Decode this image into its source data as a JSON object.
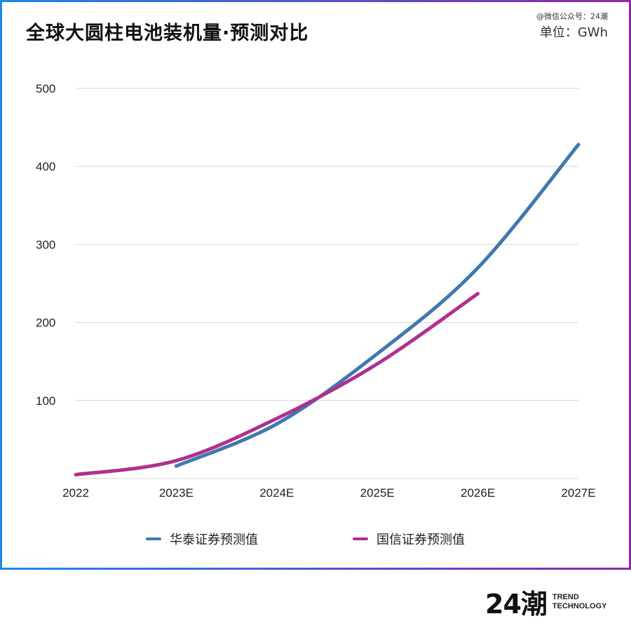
{
  "header": {
    "title": "全球大圆柱电池装机量·预测对比",
    "watermark": "@微信公众号：24潮",
    "unit": "单位：GWh"
  },
  "chart_data": {
    "type": "line",
    "categories": [
      "2022",
      "2023E",
      "2024E",
      "2025E",
      "2026E",
      "2027E"
    ],
    "y_ticks": [
      "100",
      "200",
      "300",
      "400",
      "500"
    ],
    "ylim": [
      0,
      500
    ],
    "grid": true,
    "legend_position": "bottom",
    "series": [
      {
        "name": "华泰证券预测值",
        "color": "#3f78b0",
        "values": [
          null,
          16,
          70,
          160,
          270,
          428
        ]
      },
      {
        "name": "国信证券预测值",
        "color": "#b0308f",
        "values": [
          5,
          23,
          77,
          147,
          237,
          null
        ]
      }
    ]
  },
  "footer": {
    "logo_mark": "24潮",
    "logo_line1": "TREND",
    "logo_line2": "TECHNOLOGY"
  }
}
